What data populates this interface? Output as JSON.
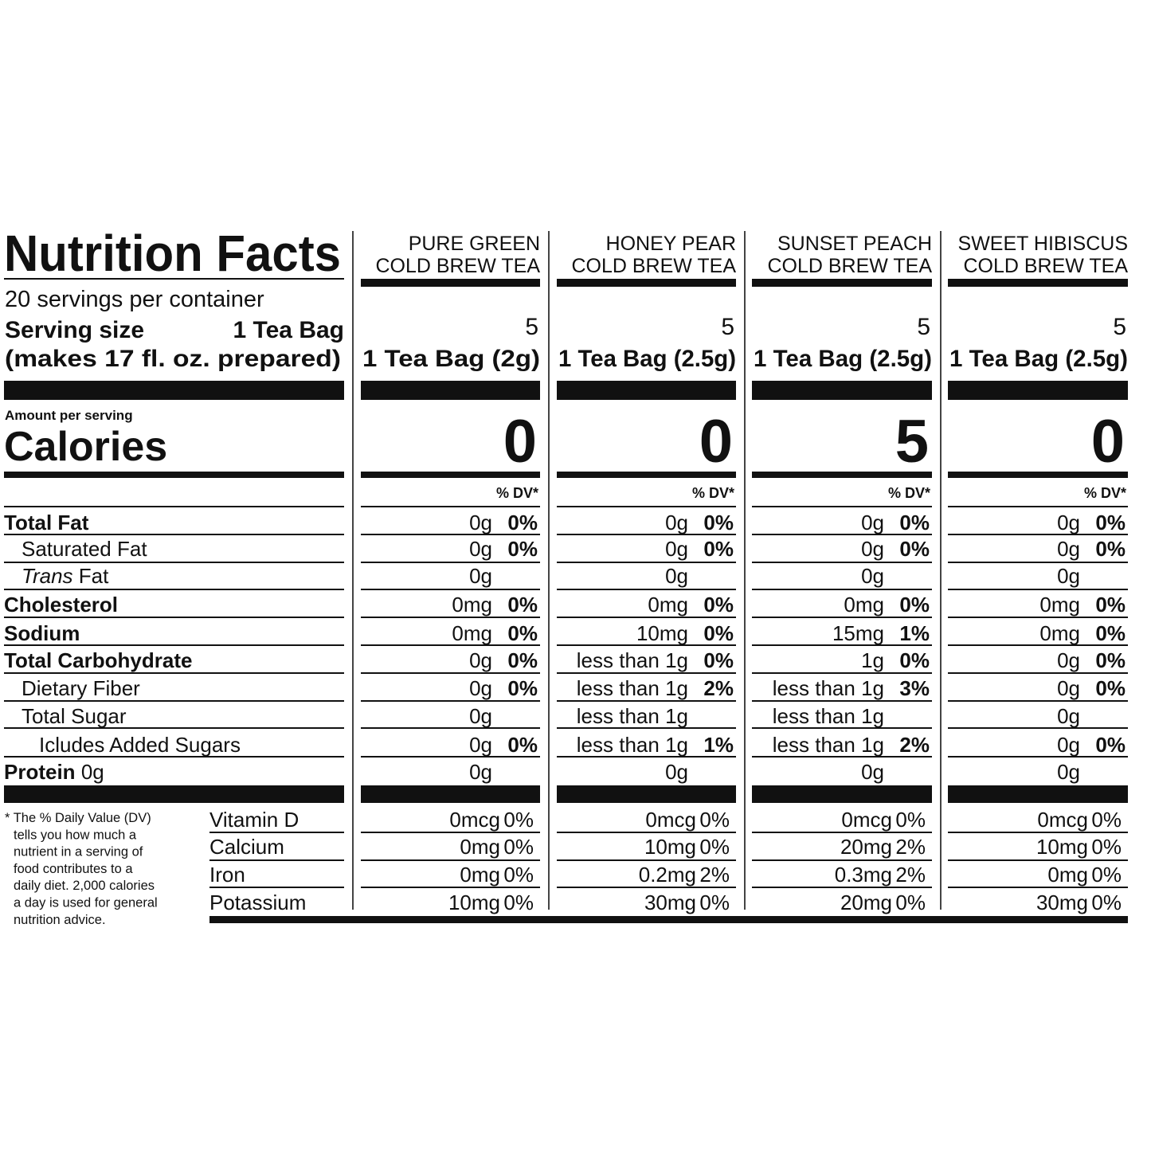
{
  "header": {
    "title": "Nutrition Facts",
    "servings_per_container": "20 servings per container",
    "serving_size_label": "Serving size",
    "serving_size_value": "1 Tea Bag",
    "serving_note": "(makes 17 fl. oz. prepared)",
    "amount_per_serving": "Amount per serving",
    "calories_label": "Calories",
    "dv_header": "% DV*"
  },
  "nutrients": [
    {
      "label": "Total Fat"
    },
    {
      "label": "Saturated Fat"
    },
    {
      "label_italic": "Trans",
      "label": "Fat"
    },
    {
      "label": "Cholesterol"
    },
    {
      "label": "Sodium"
    },
    {
      "label": "Total Carbohydrate"
    },
    {
      "label": "Dietary Fiber"
    },
    {
      "label": "Total Sugar"
    },
    {
      "label": "Icludes Added Sugars"
    },
    {
      "label": "Protein",
      "amount": "0g"
    }
  ],
  "vitamins": [
    "Vitamin D",
    "Calcium",
    "Iron",
    "Potassium"
  ],
  "footnote": [
    "* The % Daily Value (DV)",
    "tells you how much a",
    "nutrient in a serving of",
    "food contributes to a",
    "daily diet. 2,000 calories",
    "a day is used for general",
    "nutrition advice."
  ],
  "products": [
    {
      "name": [
        "PURE GREEN",
        "COLD BREW TEA"
      ],
      "servings": 5,
      "serving_size": "1 Tea Bag (2g)",
      "calories": 0,
      "nutrients": [
        [
          "0g",
          "0%"
        ],
        [
          "0g",
          "0%"
        ],
        [
          "0g",
          null
        ],
        [
          "0mg",
          "0%"
        ],
        [
          "0mg",
          "0%"
        ],
        [
          "0g",
          "0%"
        ],
        [
          "0g",
          "0%"
        ],
        [
          "0g",
          null
        ],
        [
          "0g",
          "0%"
        ],
        [
          "0g",
          null
        ]
      ],
      "vitamins": [
        [
          "0mcg",
          "0%"
        ],
        [
          "0mg",
          "0%"
        ],
        [
          "0mg",
          "0%"
        ],
        [
          "10mg",
          "0%"
        ]
      ]
    },
    {
      "name": [
        "HONEY PEAR",
        "COLD BREW TEA"
      ],
      "servings": 5,
      "serving_size": "1 Tea Bag (2.5g)",
      "calories": 0,
      "nutrients": [
        [
          "0g",
          "0%"
        ],
        [
          "0g",
          "0%"
        ],
        [
          "0g",
          null
        ],
        [
          "0mg",
          "0%"
        ],
        [
          "10mg",
          "0%"
        ],
        [
          "less than 1g",
          "0%"
        ],
        [
          "less than 1g",
          "2%"
        ],
        [
          "less than 1g",
          null
        ],
        [
          "less than 1g",
          "1%"
        ],
        [
          "0g",
          null
        ]
      ],
      "vitamins": [
        [
          "0mcg",
          "0%"
        ],
        [
          "10mg",
          "0%"
        ],
        [
          "0.2mg",
          "2%"
        ],
        [
          "30mg",
          "0%"
        ]
      ]
    },
    {
      "name": [
        "SUNSET PEACH",
        "COLD BREW TEA"
      ],
      "servings": 5,
      "serving_size": "1 Tea Bag (2.5g)",
      "calories": 5,
      "nutrients": [
        [
          "0g",
          "0%"
        ],
        [
          "0g",
          "0%"
        ],
        [
          "0g",
          null
        ],
        [
          "0mg",
          "0%"
        ],
        [
          "15mg",
          "1%"
        ],
        [
          "1g",
          "0%"
        ],
        [
          "less than 1g",
          "3%"
        ],
        [
          "less than 1g",
          null
        ],
        [
          "less than 1g",
          "2%"
        ],
        [
          "0g",
          null
        ]
      ],
      "vitamins": [
        [
          "0mcg",
          "0%"
        ],
        [
          "20mg",
          "2%"
        ],
        [
          "0.3mg",
          "2%"
        ],
        [
          "20mg",
          "0%"
        ]
      ]
    },
    {
      "name": [
        "SWEET HIBISCUS",
        "COLD BREW TEA"
      ],
      "servings": 5,
      "serving_size": "1 Tea Bag (2.5g)",
      "calories": 0,
      "nutrients": [
        [
          "0g",
          "0%"
        ],
        [
          "0g",
          "0%"
        ],
        [
          "0g",
          null
        ],
        [
          "0mg",
          "0%"
        ],
        [
          "0mg",
          "0%"
        ],
        [
          "0g",
          "0%"
        ],
        [
          "0g",
          "0%"
        ],
        [
          "0g",
          null
        ],
        [
          "0g",
          "0%"
        ],
        [
          "0g",
          null
        ]
      ],
      "vitamins": [
        [
          "0mcg",
          "0%"
        ],
        [
          "10mg",
          "0%"
        ],
        [
          "0mg",
          "0%"
        ],
        [
          "30mg",
          "0%"
        ]
      ]
    }
  ]
}
